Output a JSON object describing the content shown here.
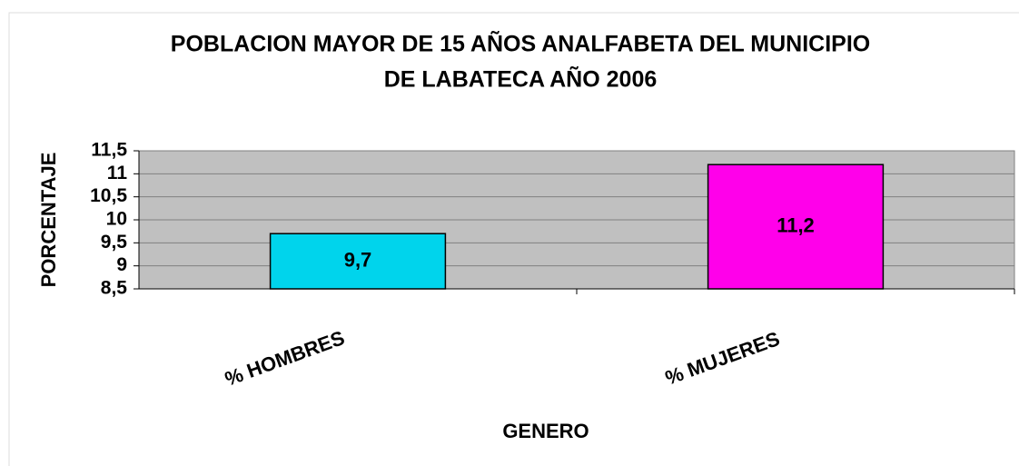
{
  "chart_data": {
    "type": "bar",
    "title": [
      "POBLACION MAYOR DE 15 AÑOS ANALFABETA DEL MUNICIPIO",
      "DE LABATECA AÑO 2006"
    ],
    "x_label": "GENERO",
    "y_label": "PORCENTAJE",
    "categories": [
      "% HOMBRES",
      "% MUJERES"
    ],
    "values": [
      9.7,
      11.2
    ],
    "value_labels": [
      "9,7",
      "11,2"
    ],
    "colors": [
      "#00d4ec",
      "#ff00ea"
    ],
    "ylim": [
      8.5,
      11.5
    ],
    "yticks": [
      {
        "value": 8.5,
        "label": "8,5"
      },
      9,
      {
        "value": 9.5,
        "label": "9,5"
      },
      10,
      {
        "value": 10.5,
        "label": "10,5"
      },
      11,
      {
        "value": 11.5,
        "label": "11,5"
      }
    ],
    "grid": true
  }
}
